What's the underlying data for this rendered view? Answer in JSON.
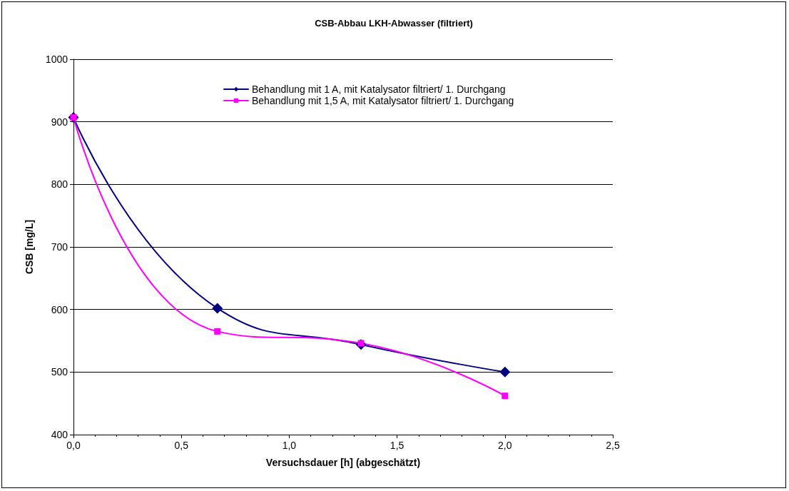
{
  "chart_data": {
    "type": "line",
    "title": "CSB-Abbau LKH-Abwasser (filtriert)",
    "xlabel": "Versuchsdauer [h] (abgeschätzt)",
    "ylabel": "CSB [mg/L]",
    "x": [
      0,
      0.667,
      1.333,
      2.0
    ],
    "series": [
      {
        "name": "Behandlung mit 1 A, mit Katalysator filtriert/ 1. Durchgang",
        "color": "#000080",
        "marker": "diamond",
        "values": [
          907,
          602,
          544,
          500
        ]
      },
      {
        "name": "Behandlung mit 1,5 A, mit Katalysator filtriert/ 1. Durchgang",
        "color": "#ff00ff",
        "marker": "square",
        "values": [
          907,
          565,
          546,
          462
        ]
      }
    ],
    "xlim": [
      0,
      2.5
    ],
    "xticks": [
      {
        "value": 0,
        "label": "0,0"
      },
      {
        "value": 0.5,
        "label": "0,5"
      },
      {
        "value": 1,
        "label": "1,0"
      },
      {
        "value": 1.5,
        "label": "1,5"
      },
      {
        "value": 2,
        "label": "2,0"
      },
      {
        "value": 2.5,
        "label": "2,5"
      }
    ],
    "ylim": [
      400,
      1000
    ],
    "yticks": [
      400,
      500,
      600,
      700,
      800,
      900,
      1000
    ],
    "grid": "y",
    "legend": "top",
    "line_style": "solid"
  }
}
